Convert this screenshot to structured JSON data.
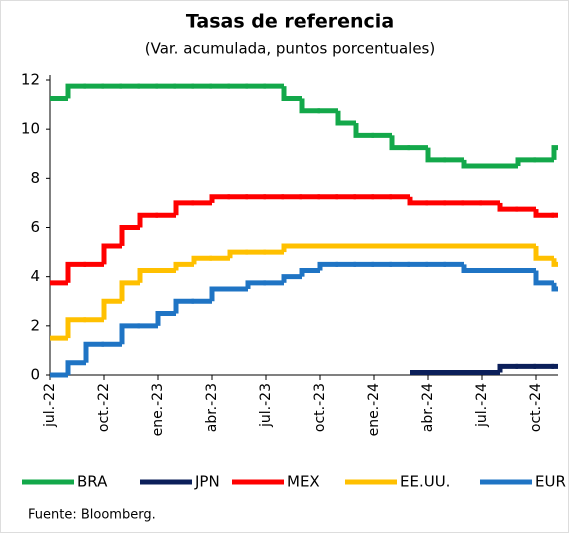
{
  "chart_data": {
    "type": "step",
    "title": "Tasas de referencia",
    "subtitle": "(Var. acumulada, puntos porcentuales)",
    "source": "Fuente: Bloomberg.",
    "categories": [
      "jul.-22",
      null,
      null,
      "oct.-22",
      null,
      null,
      "ene.-23",
      null,
      null,
      "abr.-23",
      null,
      null,
      "jul.-23",
      null,
      null,
      "oct.-23",
      null,
      null,
      "ene.-24",
      null,
      null,
      "abr.-24",
      null,
      null,
      "jul.-24",
      null,
      null,
      "oct.-24",
      null
    ],
    "ylim": [
      0,
      12
    ],
    "yticks": [
      0,
      2,
      4,
      6,
      8,
      10,
      12
    ],
    "series": [
      {
        "name": "BRA",
        "color": "#13a84a",
        "values": [
          11.25,
          11.75,
          11.75,
          11.75,
          11.75,
          11.75,
          11.75,
          11.75,
          11.75,
          11.75,
          11.75,
          11.75,
          11.75,
          11.25,
          10.75,
          10.75,
          10.25,
          9.75,
          9.75,
          9.25,
          9.25,
          8.75,
          8.75,
          8.5,
          8.5,
          8.5,
          8.75,
          8.75,
          9.25
        ]
      },
      {
        "name": "JPN",
        "color": "#0b1f5a",
        "values": [
          null,
          null,
          null,
          null,
          null,
          null,
          null,
          null,
          null,
          null,
          null,
          null,
          null,
          null,
          null,
          null,
          null,
          null,
          null,
          null,
          0.1,
          0.1,
          0.1,
          0.1,
          0.1,
          0.35,
          0.35,
          0.35,
          0.35
        ]
      },
      {
        "name": "MEX",
        "color": "#ff0000",
        "values": [
          3.75,
          4.5,
          4.5,
          5.25,
          6.0,
          6.5,
          6.5,
          7.0,
          7.0,
          7.25,
          7.25,
          7.25,
          7.25,
          7.25,
          7.25,
          7.25,
          7.25,
          7.25,
          7.25,
          7.25,
          7.0,
          7.0,
          7.0,
          7.0,
          7.0,
          6.75,
          6.75,
          6.5,
          6.5
        ]
      },
      {
        "name": "EE.UU.",
        "color": "#ffc000",
        "values": [
          1.5,
          2.25,
          2.25,
          3.0,
          3.75,
          4.25,
          4.25,
          4.5,
          4.75,
          4.75,
          5.0,
          5.0,
          5.0,
          5.25,
          5.25,
          5.25,
          5.25,
          5.25,
          5.25,
          5.25,
          5.25,
          5.25,
          5.25,
          5.25,
          5.25,
          5.25,
          5.25,
          4.75,
          4.5
        ]
      },
      {
        "name": "EUR",
        "color": "#1f74c4",
        "values": [
          0,
          0.5,
          1.25,
          1.25,
          2.0,
          2.0,
          2.5,
          3.0,
          3.0,
          3.5,
          3.5,
          3.75,
          3.75,
          4.0,
          4.25,
          4.5,
          4.5,
          4.5,
          4.5,
          4.5,
          4.5,
          4.5,
          4.5,
          4.25,
          4.25,
          4.25,
          4.25,
          3.75,
          3.5
        ]
      }
    ]
  }
}
